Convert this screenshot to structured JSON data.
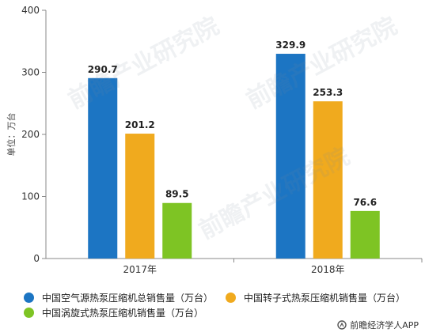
{
  "chart_data": {
    "type": "bar",
    "categories": [
      "2017年",
      "2018年"
    ],
    "series": [
      {
        "name": "中国空气源热泵压缩机总销售量（万台）",
        "values": [
          290.7,
          329.9
        ],
        "color": "#1c75c3"
      },
      {
        "name": "中国转子式热泵压缩机销售量（万台）",
        "values": [
          201.2,
          253.3
        ],
        "color": "#f0aa1e"
      },
      {
        "name": "中国涡旋式热泵压缩机销售量（万台）",
        "values": [
          89.5,
          76.6
        ],
        "color": "#7ec424"
      }
    ],
    "yticks": [
      0,
      100,
      200,
      300,
      400
    ],
    "ylim": [
      0,
      400
    ],
    "ylabel": "单位：万台",
    "grid": false,
    "legend_position": "bottom"
  },
  "watermark": "前瞻产业研究院",
  "credit": "前瞻经济学人APP"
}
